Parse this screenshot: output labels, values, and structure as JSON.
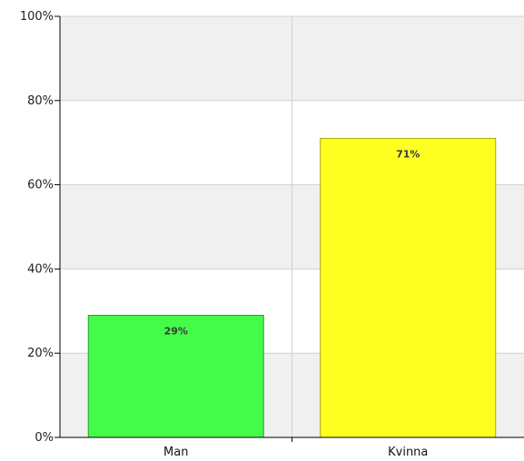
{
  "chart_data": {
    "type": "bar",
    "categories": [
      "Man",
      "Kvinna"
    ],
    "values": [
      29,
      71
    ],
    "data_labels": [
      "29%",
      "71%"
    ],
    "bar_colors": [
      "#44fb4a",
      "#ffff22"
    ],
    "bar_border_colors": [
      "#2d9a2d",
      "#a8a800"
    ],
    "ylim": [
      0,
      100
    ],
    "yticks": [
      0,
      20,
      40,
      60,
      80,
      100
    ],
    "ytick_labels": [
      "0%",
      "20%",
      "40%",
      "60%",
      "80%",
      "100%"
    ],
    "band_colors": [
      "#f0f0f0",
      "#ffffff"
    ],
    "grid": true,
    "title": "",
    "xlabel": "",
    "ylabel": ""
  }
}
